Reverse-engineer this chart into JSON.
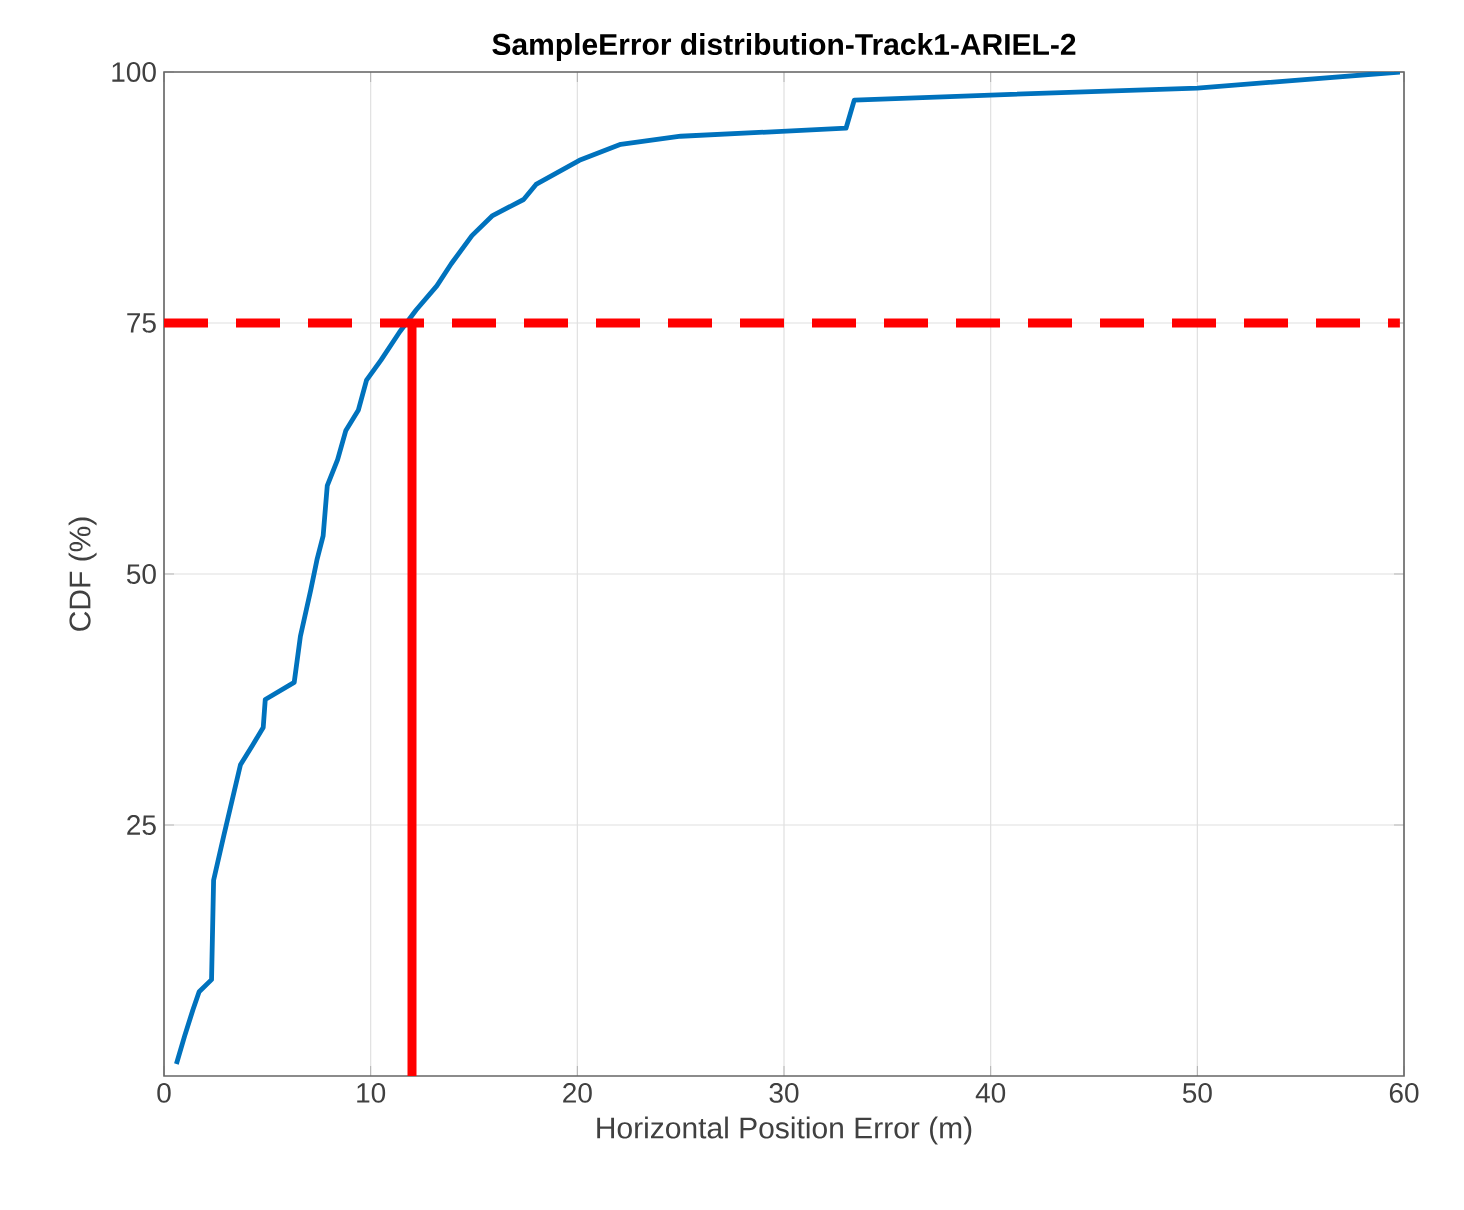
{
  "chart_data": {
    "type": "line",
    "title": "SampleError distribution-Track1-ARIEL-2",
    "xlabel": "Horizontal Position Error (m)",
    "ylabel": "CDF (%)",
    "xlim": [
      0,
      60
    ],
    "ylim": [
      0,
      100
    ],
    "xticks": [
      0,
      10,
      20,
      30,
      40,
      50,
      60
    ],
    "yticks": [
      25,
      50,
      75,
      100
    ],
    "grid": true,
    "series": [
      {
        "color": "#0072bd",
        "line_style": "solid",
        "x": [
          0.6,
          1.0,
          1.4,
          1.7,
          2.3,
          2.4,
          2.9,
          3.3,
          3.7,
          4.3,
          4.8,
          4.9,
          6.3,
          6.6,
          7.1,
          7.4,
          7.7,
          7.9,
          8.4,
          8.8,
          9.4,
          9.8,
          10.5,
          11.4,
          12.2,
          13.2,
          13.9,
          14.9,
          15.9,
          17.4,
          18.0,
          20.1,
          22.1,
          25.0,
          33.0,
          33.4,
          40,
          50,
          59.8
        ],
        "values": [
          1.2,
          4,
          6.6,
          8.4,
          9.6,
          19.5,
          24,
          27.5,
          31,
          33,
          34.7,
          37.5,
          39.2,
          43.8,
          48.4,
          51.4,
          53.8,
          58.8,
          61.4,
          64.3,
          66.3,
          69.3,
          71.3,
          74.1,
          76.3,
          78.7,
          80.9,
          83.7,
          85.7,
          87.3,
          88.8,
          91.2,
          92.8,
          93.6,
          94.4,
          97.2,
          97.7,
          98.4,
          100
        ]
      },
      {
        "color": "#ff0000",
        "line_style": "dashed",
        "x": [
          0,
          59.8
        ],
        "values": [
          75,
          75
        ]
      },
      {
        "color": "#ff0000",
        "line_style": "solid",
        "x": [
          12.0,
          12.0
        ],
        "values": [
          0,
          75
        ]
      }
    ]
  }
}
